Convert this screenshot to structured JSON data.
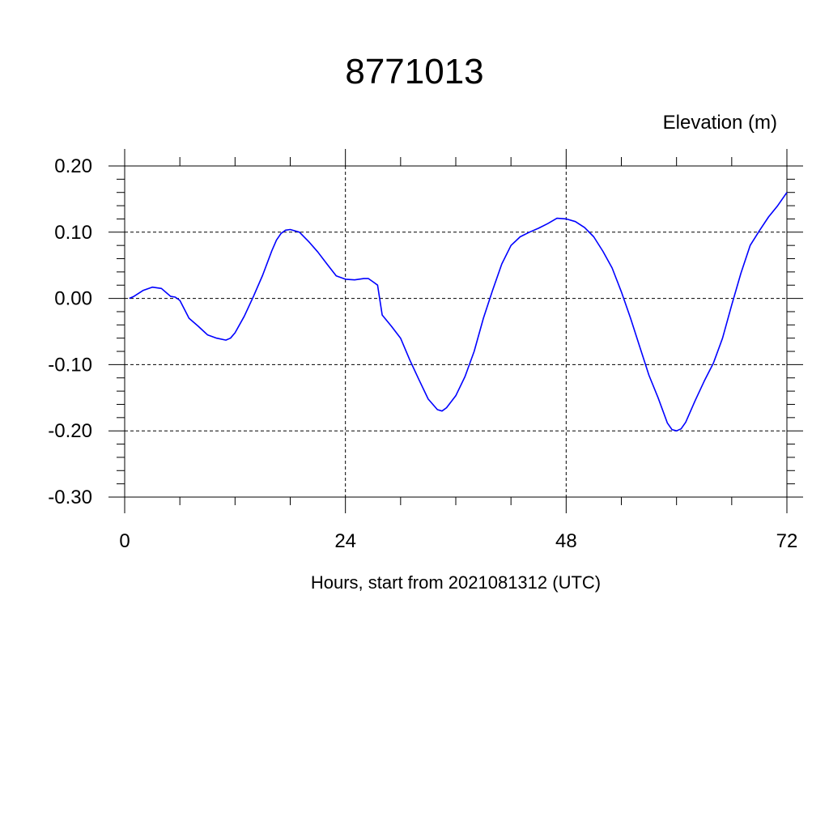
{
  "chart_data": {
    "type": "line",
    "title": "8771013",
    "ylabel": "Elevation (m)",
    "xlabel": "Hours, start from 2021081312 (UTC)",
    "xlim": [
      0,
      72
    ],
    "ylim": [
      -0.3,
      0.2
    ],
    "xticks": [
      0,
      24,
      48,
      72
    ],
    "xtick_labels": [
      "0",
      "24",
      "48",
      "72"
    ],
    "yticks": [
      0.2,
      0.1,
      0.0,
      -0.1,
      -0.2,
      -0.3
    ],
    "ytick_labels": [
      "0.20",
      "0.10",
      "0.00",
      "-0.10",
      "-0.20",
      "-0.30"
    ],
    "grid": true,
    "series": [
      {
        "color": "#0000ff",
        "x": [
          0.5,
          1,
          2,
          3,
          4,
          5,
          5.5,
          6,
          7,
          8,
          9,
          10,
          11,
          11.5,
          12,
          13,
          14,
          15,
          16,
          16.5,
          17,
          17.5,
          18,
          19,
          20,
          21,
          22,
          23,
          24,
          25,
          26,
          26.5,
          27,
          27.5,
          28,
          29,
          30,
          31,
          32,
          33,
          34,
          34.5,
          35,
          36,
          37,
          38,
          39,
          40,
          41,
          42,
          43,
          44,
          45,
          46,
          47,
          48,
          49,
          50,
          51,
          52,
          53,
          54,
          55,
          56,
          57,
          58,
          59,
          59.5,
          60,
          60.5,
          61,
          62,
          63,
          64,
          65,
          66,
          67,
          68,
          69,
          70,
          71,
          72
        ],
        "y": [
          0.0,
          0.003,
          0.012,
          0.017,
          0.015,
          0.003,
          0.002,
          -0.003,
          -0.03,
          -0.042,
          -0.055,
          -0.06,
          -0.063,
          -0.06,
          -0.052,
          -0.027,
          0.003,
          0.035,
          0.072,
          0.088,
          0.098,
          0.103,
          0.104,
          0.1,
          0.086,
          0.07,
          0.052,
          0.034,
          0.029,
          0.028,
          0.03,
          0.03,
          0.025,
          0.02,
          -0.025,
          -0.042,
          -0.06,
          -0.093,
          -0.123,
          -0.152,
          -0.168,
          -0.17,
          -0.165,
          -0.147,
          -0.118,
          -0.08,
          -0.03,
          0.012,
          0.052,
          0.08,
          0.093,
          0.1,
          0.106,
          0.113,
          0.121,
          0.12,
          0.116,
          0.107,
          0.093,
          0.071,
          0.046,
          0.01,
          -0.03,
          -0.073,
          -0.116,
          -0.15,
          -0.188,
          -0.198,
          -0.2,
          -0.197,
          -0.187,
          -0.155,
          -0.125,
          -0.098,
          -0.06,
          -0.01,
          0.038,
          0.08,
          0.102,
          0.123,
          0.14,
          0.16
        ]
      }
    ]
  }
}
